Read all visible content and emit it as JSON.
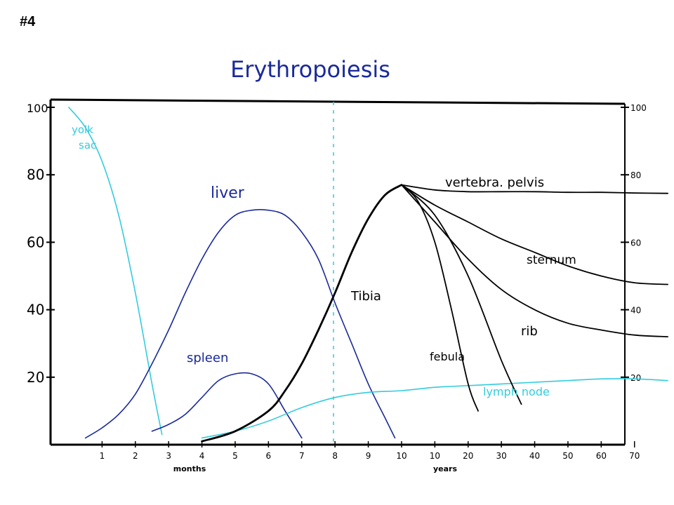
{
  "slide_number": "#4",
  "chart_data": {
    "type": "line",
    "title": "Erythropoiesis",
    "xlabel_left": "months",
    "xlabel_right": "years",
    "ylim": [
      0,
      100
    ],
    "y_ticks_left": [
      "100",
      "80",
      "60",
      "40",
      "20"
    ],
    "y_ticks_right": [
      "100",
      "80",
      "60",
      "40",
      "20"
    ],
    "x_ticks": [
      "1",
      "2",
      "3",
      "4",
      "5",
      "6",
      "7",
      "8",
      "9",
      "10",
      "10",
      "20",
      "30",
      "40",
      "50",
      "60",
      "70"
    ],
    "colors": {
      "cyan": "#33ccdd",
      "blue": "#1a2a9a",
      "black": "#000000"
    },
    "series": [
      {
        "name": "yolk sac",
        "color": "#33ccdd",
        "x": [
          0,
          0.5,
          1.0,
          1.5,
          2.0,
          2.5,
          2.8
        ],
        "y": [
          100,
          94,
          84,
          68,
          45,
          18,
          3
        ]
      },
      {
        "name": "liver",
        "color": "#1a2a9a",
        "x": [
          0.5,
          1.0,
          1.5,
          2.0,
          2.5,
          3.0,
          3.5,
          4.0,
          4.5,
          5.0,
          5.5,
          6.0,
          6.5,
          7.0,
          7.5,
          8.0,
          8.5,
          9.0,
          9.5,
          9.8
        ],
        "y": [
          2,
          5,
          9,
          15,
          24,
          34,
          45,
          55,
          63,
          68,
          69.5,
          69.5,
          68,
          63,
          55,
          42,
          30,
          18,
          8,
          2
        ]
      },
      {
        "name": "spleen",
        "color": "#1a2a9a",
        "x": [
          2.5,
          3.0,
          3.5,
          4.0,
          4.5,
          5.0,
          5.5,
          6.0,
          6.5,
          7.0
        ],
        "y": [
          4,
          6,
          9,
          14,
          19,
          21,
          21,
          18,
          10,
          2
        ]
      },
      {
        "name": "lymph node",
        "color": "#33ccdd",
        "x": [
          4.0,
          5.0,
          6.0,
          7.0,
          8.0,
          9.0,
          10.0,
          11.0,
          12.0,
          13.0,
          14.0,
          15.0,
          16.0,
          17.0,
          18.0
        ],
        "y": [
          2,
          4,
          7,
          11,
          14,
          15.5,
          16,
          17,
          17.5,
          18,
          18.5,
          19,
          19.5,
          19.5,
          19
        ]
      },
      {
        "name": "Tibia",
        "color": "#000000",
        "x": [
          10.0,
          10.5,
          11.0,
          11.5,
          12.0,
          12.3
        ],
        "y": [
          77,
          72,
          60,
          40,
          18,
          10
        ]
      },
      {
        "name": "febula",
        "color": "#000000",
        "x": [
          10.0,
          11.0,
          12.0,
          13.0,
          13.6
        ],
        "y": [
          77,
          68,
          50,
          25,
          12
        ]
      },
      {
        "name": "rib",
        "color": "#000000",
        "x": [
          10.0,
          11.0,
          12.0,
          13.0,
          14.0,
          15.0,
          16.0,
          17.0,
          18.0
        ],
        "y": [
          77,
          66,
          55,
          46,
          40,
          36,
          34,
          32.5,
          32
        ]
      },
      {
        "name": "sternum",
        "color": "#000000",
        "x": [
          10.0,
          11.0,
          12.0,
          13.0,
          14.0,
          15.0,
          16.0,
          17.0,
          18.0
        ],
        "y": [
          77,
          71,
          66,
          61,
          57,
          53,
          50,
          48,
          47.5
        ]
      },
      {
        "name": "vertebra. pelvis",
        "color": "#000000",
        "x": [
          10.0,
          11.0,
          12.0,
          13.0,
          14.0,
          15.0,
          16.0,
          17.0,
          18.0
        ],
        "y": [
          77,
          75.5,
          75,
          75,
          75,
          74.8,
          74.8,
          74.6,
          74.5
        ]
      },
      {
        "name": "",
        "color": "#000000",
        "x": [
          4.0,
          5.0,
          6.0,
          6.5,
          7.0,
          7.5,
          8.0,
          8.5,
          9.0,
          9.5,
          10.0
        ],
        "y": [
          1,
          4,
          10,
          16,
          24,
          34,
          45,
          57,
          67,
          74,
          77
        ]
      }
    ],
    "annotations": [
      "yolk sac",
      "liver",
      "spleen",
      "lymph node",
      "Tibia",
      "febula",
      "rib",
      "sternum",
      "vertebra. pelvis"
    ]
  }
}
